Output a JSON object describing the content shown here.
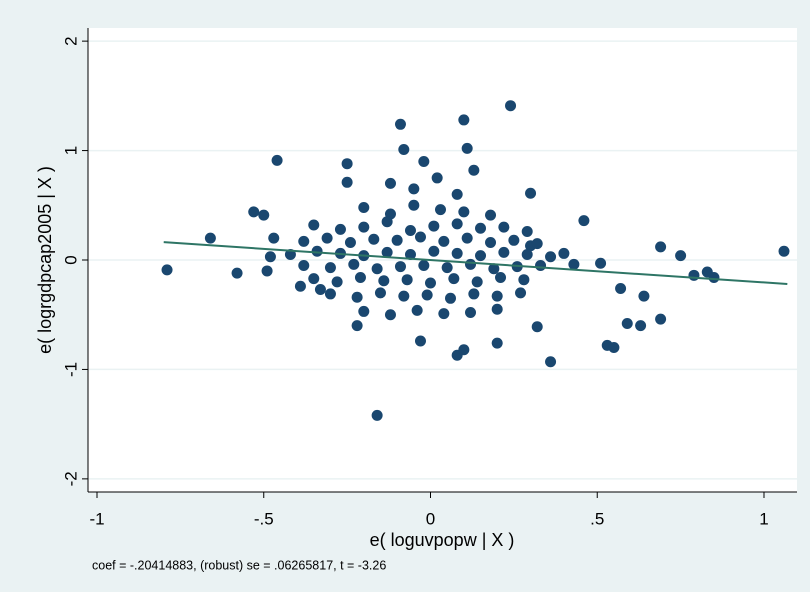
{
  "chart_data": {
    "type": "scatter",
    "x_label": "e( loguvpopw | X )",
    "y_label": "e( logrgdpcap2005 | X )",
    "note": "coef = -.20414883, (robust) se = .06265817, t = -3.26",
    "color": "#1a476f",
    "x": [
      -0.79,
      -0.66,
      -0.58,
      -0.46,
      -0.53,
      -0.5,
      -0.49,
      -0.48,
      -0.47,
      -0.25,
      -0.25,
      -0.16,
      -0.09,
      -0.08,
      0.1,
      0.24,
      0.11,
      0.3,
      0.46,
      0.36,
      0.53,
      0.55,
      0.57,
      0.59,
      0.63,
      0.64,
      0.69,
      0.69,
      0.75,
      0.79,
      0.83,
      0.85,
      1.06,
      0.51,
      0.43,
      0.4,
      0.3,
      0.08,
      0.1,
      0.2,
      0.32,
      -0.03,
      -0.22,
      -0.33,
      -0.39,
      -0.2,
      -0.12,
      -0.05,
      0.03,
      0.1,
      0.18,
      -0.35,
      -0.27,
      -0.2,
      -0.13,
      -0.06,
      0.01,
      0.08,
      0.15,
      0.22,
      0.29,
      -0.38,
      -0.31,
      -0.24,
      -0.17,
      -0.1,
      -0.03,
      0.04,
      0.11,
      0.18,
      0.25,
      0.32,
      -0.42,
      -0.34,
      -0.27,
      -0.2,
      -0.13,
      -0.06,
      0.01,
      0.08,
      0.15,
      0.22,
      0.29,
      0.36,
      -0.38,
      -0.3,
      -0.23,
      -0.16,
      -0.09,
      -0.02,
      0.05,
      0.12,
      0.19,
      0.26,
      0.33,
      -0.35,
      -0.28,
      -0.21,
      -0.14,
      -0.07,
      0,
      0.07,
      0.14,
      0.21,
      0.28,
      -0.3,
      -0.22,
      -0.15,
      -0.08,
      -0.01,
      0.06,
      0.13,
      0.2,
      0.27,
      -0.2,
      -0.12,
      -0.04,
      0.04,
      0.12,
      0.2,
      -0.05,
      0.02,
      0.08,
      -0.12,
      0.13,
      -0.02
    ],
    "values": [
      -0.09,
      0.2,
      -0.12,
      0.91,
      0.44,
      0.41,
      -0.1,
      0.03,
      0.2,
      0.88,
      0.71,
      -1.42,
      1.24,
      1.01,
      1.28,
      1.41,
      1.02,
      0.61,
      0.36,
      -0.93,
      -0.78,
      -0.8,
      -0.26,
      -0.58,
      -0.6,
      -0.33,
      -0.54,
      0.12,
      0.04,
      -0.14,
      -0.11,
      -0.16,
      0.08,
      -0.03,
      -0.04,
      0.06,
      0.13,
      -0.87,
      -0.82,
      -0.76,
      -0.61,
      -0.74,
      -0.6,
      -0.27,
      -0.24,
      0.48,
      0.42,
      0.5,
      0.46,
      0.44,
      0.41,
      0.32,
      0.28,
      0.3,
      0.35,
      0.27,
      0.31,
      0.33,
      0.29,
      0.3,
      0.26,
      0.17,
      0.2,
      0.16,
      0.19,
      0.18,
      0.21,
      0.17,
      0.2,
      0.16,
      0.18,
      0.15,
      0.05,
      0.08,
      0.06,
      0.04,
      0.07,
      0.05,
      0.08,
      0.06,
      0.04,
      0.07,
      0.05,
      0.03,
      -0.05,
      -0.07,
      -0.04,
      -0.08,
      -0.06,
      -0.05,
      -0.07,
      -0.04,
      -0.08,
      -0.06,
      -0.05,
      -0.17,
      -0.2,
      -0.16,
      -0.19,
      -0.18,
      -0.21,
      -0.17,
      -0.2,
      -0.16,
      -0.18,
      -0.31,
      -0.34,
      -0.3,
      -0.33,
      -0.32,
      -0.35,
      -0.31,
      -0.33,
      -0.3,
      -0.47,
      -0.5,
      -0.46,
      -0.49,
      -0.48,
      -0.45,
      0.65,
      0.75,
      0.6,
      0.7,
      0.82,
      0.9
    ],
    "fit": {
      "x": [
        -0.8,
        1.07
      ],
      "values": [
        0.163,
        -0.219
      ],
      "color": "#2e7565"
    },
    "xlim": [
      -1.027,
      1.099
    ],
    "ylim": [
      -2.12,
      2.12
    ],
    "xticks": [
      -1,
      {
        "value": -0.5,
        "label": "-.5"
      },
      0,
      {
        "value": 0.5,
        "label": ".5"
      },
      1
    ],
    "yticks": [
      -2,
      -1,
      0,
      1,
      2
    ],
    "grid": true
  }
}
